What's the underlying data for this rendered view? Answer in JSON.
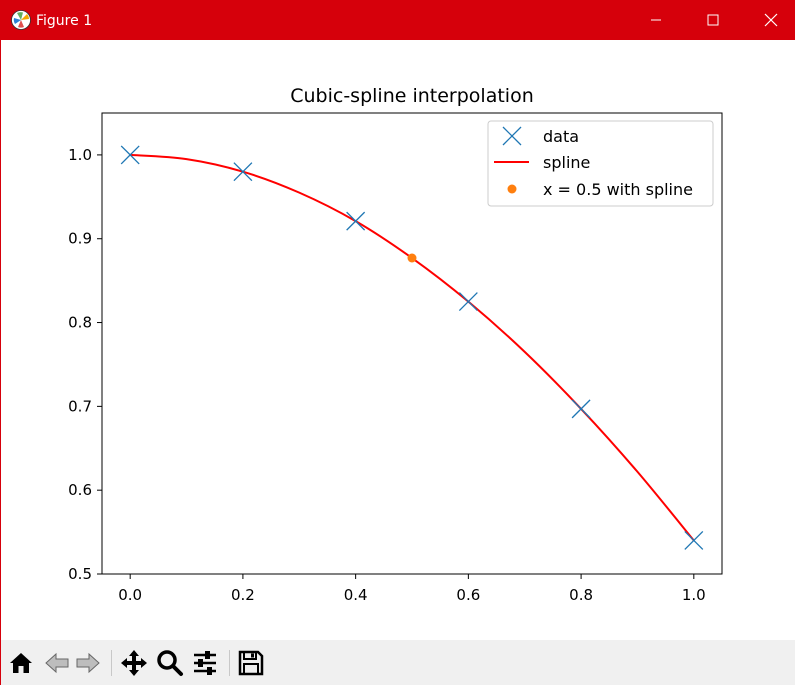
{
  "window": {
    "title": "Figure 1",
    "accent_color": "#d6000b",
    "icons": {
      "app": "matplotlib-icon",
      "minimize": "minimize-icon",
      "maximize": "maximize-icon",
      "close": "close-icon"
    }
  },
  "toolbar": {
    "tools": [
      {
        "name": "home-icon",
        "id": "home"
      },
      {
        "name": "back-arrow-icon",
        "id": "back"
      },
      {
        "name": "forward-arrow-icon",
        "id": "forward"
      },
      {
        "name": "pan-move-icon",
        "id": "pan"
      },
      {
        "name": "zoom-magnifier-icon",
        "id": "zoom"
      },
      {
        "name": "configure-subplots-icon",
        "id": "subplots"
      },
      {
        "name": "save-floppy-icon",
        "id": "save"
      }
    ]
  },
  "chart_data": {
    "type": "line",
    "title": "Cubic-spline interpolation",
    "xlabel": "",
    "ylabel": "",
    "xlim": [
      -0.05,
      1.05
    ],
    "ylim": [
      0.5,
      1.05
    ],
    "xticks": [
      0.0,
      0.2,
      0.4,
      0.6,
      0.8,
      1.0
    ],
    "xtick_labels": [
      "0.0",
      "0.2",
      "0.4",
      "0.6",
      "0.8",
      "1.0"
    ],
    "yticks": [
      0.5,
      0.6,
      0.7,
      0.8,
      0.9,
      1.0
    ],
    "ytick_labels": [
      "0.5",
      "0.6",
      "0.7",
      "0.8",
      "0.9",
      "1.0"
    ],
    "grid": false,
    "legend_position": "top-right",
    "series": [
      {
        "name": "data",
        "kind": "scatter",
        "marker": "x",
        "color": "#1f77b4",
        "x": [
          0.0,
          0.2,
          0.4,
          0.6,
          0.8,
          1.0
        ],
        "y": [
          1.0,
          0.98,
          0.921,
          0.825,
          0.697,
          0.54
        ]
      },
      {
        "name": "spline",
        "kind": "line",
        "color": "#ff0000",
        "x": [
          0.0,
          0.1,
          0.2,
          0.3,
          0.4,
          0.5,
          0.6,
          0.7,
          0.8,
          0.9,
          1.0
        ],
        "y": [
          1.0,
          0.995,
          0.98,
          0.955,
          0.921,
          0.877,
          0.825,
          0.765,
          0.697,
          0.622,
          0.54
        ]
      },
      {
        "name": "x = 0.5 with spline",
        "kind": "scatter",
        "marker": "o",
        "color": "#ff7f0e",
        "x": [
          0.5
        ],
        "y": [
          0.877
        ]
      }
    ]
  }
}
